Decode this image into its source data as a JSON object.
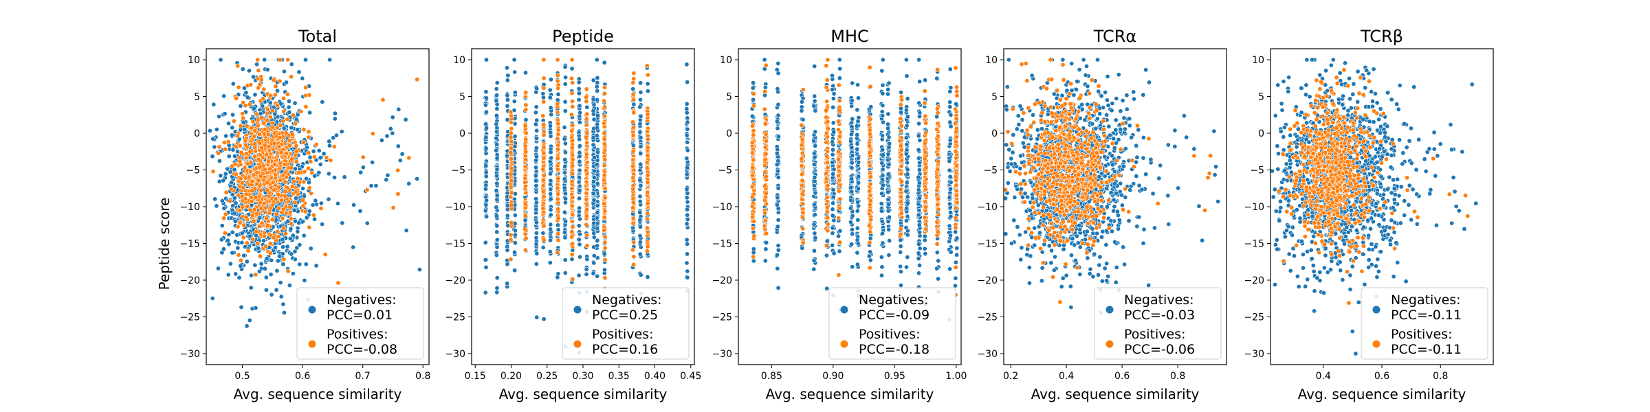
{
  "colors": {
    "negatives": "#1f77b4",
    "positives": "#ff7f0e"
  },
  "shared": {
    "xlabel": "Avg. sequence similarity",
    "ylabel": "Peptide score"
  },
  "chart_data": [
    {
      "type": "scatter",
      "title": "Total",
      "xlabel": "Avg. sequence similarity",
      "ylabel": "Peptide score",
      "xlim": [
        0.44,
        0.81
      ],
      "ylim": [
        -31.5,
        11.5
      ],
      "xticks": [
        "0.5",
        "0.6",
        "0.7",
        "0.8"
      ],
      "yticks": [
        "10",
        "5",
        "0",
        "−5",
        "−10",
        "−15",
        "−20",
        "−25",
        "−30"
      ],
      "legend": {
        "position": "lower-right",
        "entries": [
          {
            "series": "negatives",
            "line1": "Negatives:",
            "line2": "PCC=0.01"
          },
          {
            "series": "positives",
            "line1": "Positives:",
            "line2": "PCC=-0.08"
          }
        ]
      },
      "series": [
        {
          "key": "negatives",
          "x_center": 0.54,
          "x_spread": 0.035,
          "y_center": -6,
          "y_spread": 6.0,
          "pcc": 0.01
        },
        {
          "key": "positives",
          "x_center": 0.54,
          "x_spread": 0.03,
          "y_center": -5,
          "y_spread": 5.0,
          "pcc": -0.08
        }
      ]
    },
    {
      "type": "scatter",
      "title": "Peptide",
      "xlabel": "Avg. sequence similarity",
      "ylabel": "",
      "xlim": [
        0.145,
        0.455
      ],
      "ylim": [
        -31.5,
        11.5
      ],
      "xticks": [
        "0.15",
        "0.20",
        "0.25",
        "0.30",
        "0.35",
        "0.40",
        "0.45"
      ],
      "yticks": [
        "10",
        "5",
        "0",
        "−5",
        "−10",
        "−15",
        "−20",
        "−25",
        "−30"
      ],
      "legend": {
        "position": "lower-right",
        "entries": [
          {
            "series": "negatives",
            "line1": "Negatives:",
            "line2": "PCC=0.25"
          },
          {
            "series": "positives",
            "line1": "Positives:",
            "line2": "PCC=0.16"
          }
        ]
      },
      "series": [
        {
          "key": "negatives",
          "x_columns": [
            0.165,
            0.18,
            0.195,
            0.205,
            0.22,
            0.235,
            0.245,
            0.255,
            0.265,
            0.275,
            0.285,
            0.295,
            0.305,
            0.315,
            0.32,
            0.33,
            0.37,
            0.38,
            0.39,
            0.445
          ],
          "y_center": -6,
          "y_spread": 6.5,
          "pcc": 0.25
        },
        {
          "key": "positives",
          "x_columns": [
            0.2,
            0.22,
            0.245,
            0.265,
            0.285,
            0.305,
            0.33,
            0.37,
            0.39
          ],
          "y_center": -5,
          "y_spread": 5.5,
          "pcc": 0.16
        }
      ]
    },
    {
      "type": "scatter",
      "title": "MHC",
      "xlabel": "Avg. sequence similarity",
      "ylabel": "",
      "xlim": [
        0.823,
        1.004
      ],
      "ylim": [
        -31.5,
        11.5
      ],
      "xticks": [
        "0.85",
        "0.90",
        "0.95",
        "1.00"
      ],
      "yticks": [
        "10",
        "5",
        "0",
        "−5",
        "−10",
        "−15",
        "−20",
        "−25",
        "−30"
      ],
      "legend": {
        "position": "lower-right",
        "entries": [
          {
            "series": "negatives",
            "line1": "Negatives:",
            "line2": "PCC=-0.09"
          },
          {
            "series": "positives",
            "line1": "Positives:",
            "line2": "PCC=-0.18"
          }
        ]
      },
      "series": [
        {
          "key": "negatives",
          "x_columns": [
            0.835,
            0.845,
            0.855,
            0.875,
            0.885,
            0.895,
            0.9,
            0.905,
            0.915,
            0.92,
            0.93,
            0.94,
            0.945,
            0.955,
            0.96,
            0.97,
            0.975,
            0.985,
            0.995,
            1.0
          ],
          "y_center": -6,
          "y_spread": 6.0,
          "pcc": -0.09
        },
        {
          "key": "positives",
          "x_columns": [
            0.835,
            0.845,
            0.875,
            0.895,
            0.905,
            0.93,
            0.955,
            0.975,
            0.985,
            1.0
          ],
          "y_center": -5,
          "y_spread": 5.0,
          "pcc": -0.18
        }
      ]
    },
    {
      "type": "scatter",
      "title": "TCRα",
      "xlabel": "Avg. sequence similarity",
      "ylabel": "",
      "xlim": [
        0.175,
        0.975
      ],
      "ylim": [
        -31.5,
        11.5
      ],
      "xticks": [
        "0.2",
        "0.4",
        "0.6",
        "0.8"
      ],
      "yticks": [
        "10",
        "5",
        "0",
        "−5",
        "−10",
        "−15",
        "−20",
        "−25",
        "−30"
      ],
      "legend": {
        "position": "lower-right",
        "entries": [
          {
            "series": "negatives",
            "line1": "Negatives:",
            "line2": "PCC=-0.03"
          },
          {
            "series": "positives",
            "line1": "Positives:",
            "line2": "PCC=-0.06"
          }
        ]
      },
      "series": [
        {
          "key": "negatives",
          "x_center": 0.42,
          "x_spread": 0.1,
          "y_center": -6,
          "y_spread": 6.0,
          "pcc": -0.03
        },
        {
          "key": "positives",
          "x_center": 0.4,
          "x_spread": 0.07,
          "y_center": -5,
          "y_spread": 5.0,
          "pcc": -0.06
        }
      ]
    },
    {
      "type": "scatter",
      "title": "TCRβ",
      "xlabel": "Avg. sequence similarity",
      "ylabel": "",
      "xlim": [
        0.22,
        0.98
      ],
      "ylim": [
        -31.5,
        11.5
      ],
      "xticks": [
        "0.4",
        "0.6",
        "0.8"
      ],
      "yticks": [
        "10",
        "5",
        "0",
        "−5",
        "−10",
        "−15",
        "−20",
        "−25",
        "−30"
      ],
      "legend": {
        "position": "lower-right",
        "entries": [
          {
            "series": "negatives",
            "line1": "Negatives:",
            "line2": "PCC=-0.11"
          },
          {
            "series": "positives",
            "line1": "Positives:",
            "line2": "PCC=-0.11"
          }
        ]
      },
      "series": [
        {
          "key": "negatives",
          "x_center": 0.45,
          "x_spread": 0.1,
          "y_center": -6,
          "y_spread": 6.0,
          "pcc": -0.11
        },
        {
          "key": "positives",
          "x_center": 0.43,
          "x_spread": 0.07,
          "y_center": -5,
          "y_spread": 5.0,
          "pcc": -0.11
        }
      ]
    }
  ]
}
